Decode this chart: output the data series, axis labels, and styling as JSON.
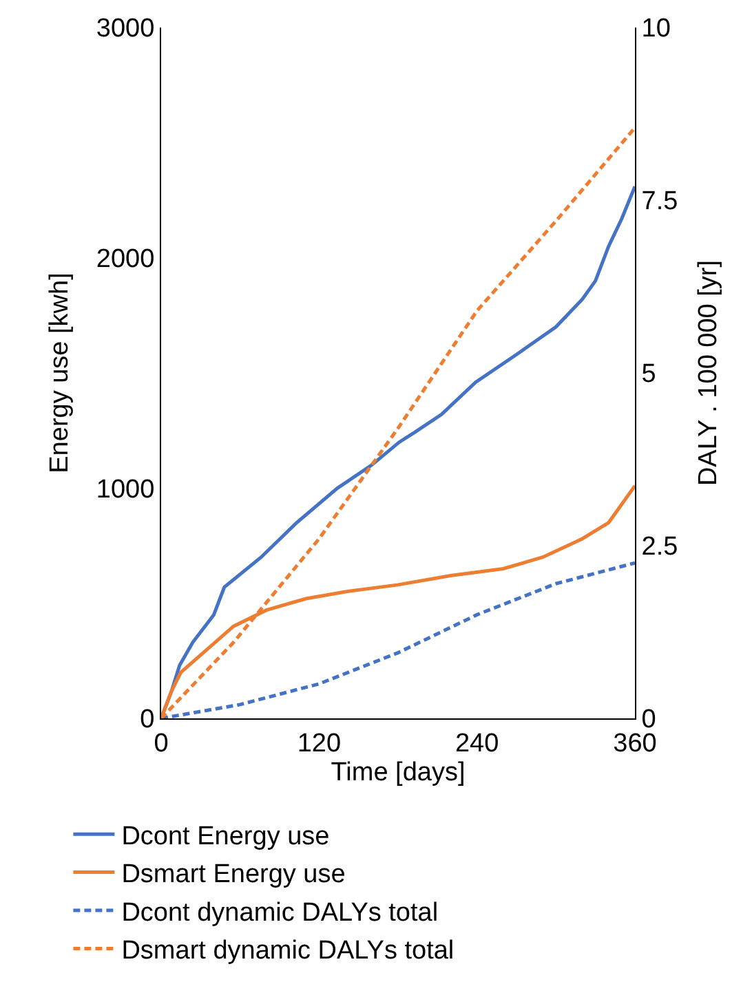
{
  "chart_data": {
    "type": "line",
    "xlabel": "Time [days]",
    "ylabel": "Energy use [kwh]",
    "y2label": "DALY . 100 000 [yr]",
    "xlim": [
      0,
      360
    ],
    "xticks": [
      0,
      120,
      240,
      360
    ],
    "ylim": [
      0,
      3000
    ],
    "yticks": [
      0,
      1000,
      2000,
      3000
    ],
    "y2lim": [
      0,
      10
    ],
    "y2ticks": [
      0,
      2.5,
      5,
      7.5,
      10
    ],
    "legend": "bottom",
    "marker": "none",
    "series": [
      {
        "name": "Dcont Energy use",
        "color": "#4472c4",
        "line_style": "solid",
        "x": [
          0,
          8,
          14,
          24,
          40,
          48,
          76,
          103,
          134,
          160,
          181,
          192,
          213,
          239,
          270,
          300,
          320,
          330,
          340,
          350,
          360
        ],
        "values": [
          0,
          120,
          230,
          330,
          450,
          570,
          700,
          850,
          1000,
          1100,
          1200,
          1240,
          1320,
          1460,
          1580,
          1700,
          1820,
          1900,
          2050,
          2170,
          2310
        ]
      },
      {
        "name": "Dsmart Energy use",
        "color": "#ed7d31",
        "line_style": "solid",
        "x": [
          0,
          8,
          15,
          35,
          55,
          80,
          110,
          140,
          180,
          220,
          260,
          290,
          320,
          340,
          360
        ],
        "values": [
          0,
          120,
          200,
          300,
          400,
          470,
          520,
          550,
          580,
          620,
          650,
          700,
          780,
          850,
          1010
        ]
      },
      {
        "name": "Dcont dynamic DALYs total",
        "color": "#4472c4",
        "line_style": "dashed",
        "axis": "y2",
        "x": [
          0,
          60,
          120,
          180,
          240,
          300,
          360
        ],
        "values": [
          0,
          0.2,
          0.5,
          0.95,
          1.5,
          1.95,
          2.25
        ]
      },
      {
        "name": "Dsmart dynamic DALYs total",
        "color": "#ed7d31",
        "line_style": "dashed",
        "axis": "y2",
        "x": [
          0,
          55,
          120,
          180,
          240,
          300,
          360
        ],
        "values": [
          0,
          1.1,
          2.6,
          4.2,
          5.9,
          7.2,
          8.55
        ]
      }
    ]
  }
}
